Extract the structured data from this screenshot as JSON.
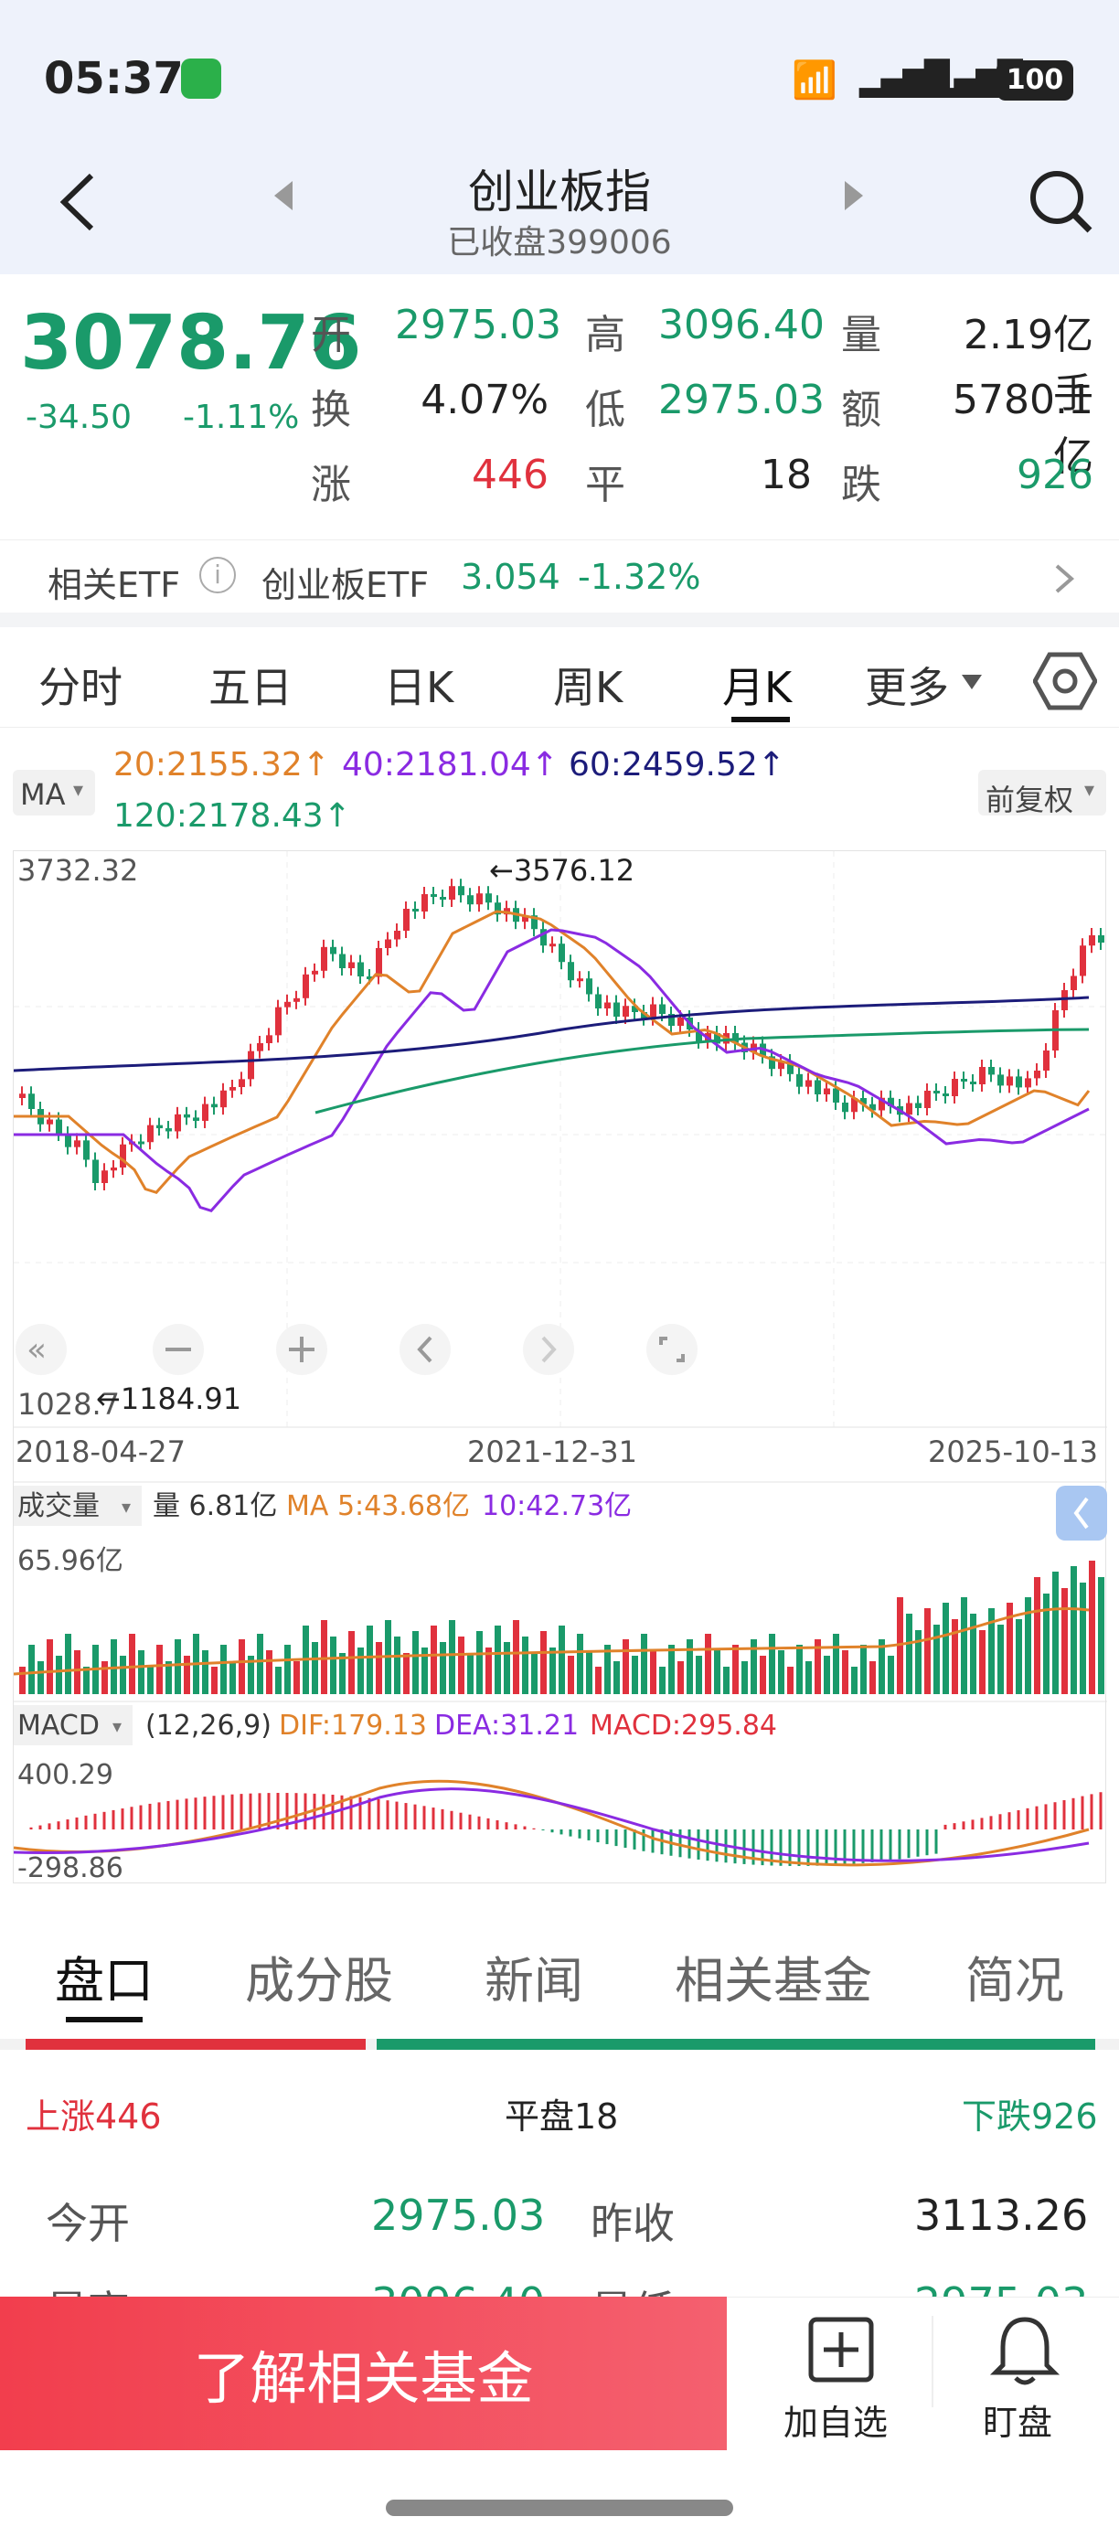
{
  "status": {
    "time": "05:37",
    "battery": "100"
  },
  "nav": {
    "title": "创业板指",
    "subtitle": "已收盘399006"
  },
  "quote": {
    "price": "3078.76",
    "change": "-34.50",
    "change_pct": "-1.11%",
    "rows": [
      [
        {
          "k": "开",
          "v": "2975.03",
          "c": "g"
        },
        {
          "k": "高",
          "v": "3096.40",
          "c": "g"
        },
        {
          "k": "量",
          "v": "2.19亿手",
          "c": ""
        }
      ],
      [
        {
          "k": "换",
          "v": "4.07%",
          "c": ""
        },
        {
          "k": "低",
          "v": "2975.03",
          "c": "g"
        },
        {
          "k": "额",
          "v": "5780.1亿",
          "c": ""
        }
      ],
      [
        {
          "k": "涨",
          "v": "446",
          "c": "r"
        },
        {
          "k": "平",
          "v": "18",
          "c": ""
        },
        {
          "k": "跌",
          "v": "926",
          "c": "g"
        }
      ]
    ]
  },
  "etf": {
    "label": "相关ETF",
    "name": "创业板ETF",
    "price": "3.054",
    "pct": "-1.32%"
  },
  "tabs": [
    "分时",
    "五日",
    "日K",
    "周K",
    "月K",
    "更多"
  ],
  "ma": {
    "label": "MA",
    "ma20": "20:2155.32↑",
    "ma40": "40:2181.04↑",
    "ma60": "60:2459.52↑",
    "ma120": "120:2178.43↑",
    "adjust": "前复权"
  },
  "kline": {
    "max_label": "3732.32",
    "min_label": "1028.7",
    "high_mark": "←3576.12",
    "low_mark": "←1184.91",
    "dates": [
      "2018-04-27",
      "2021-12-31",
      "2025-10-13"
    ]
  },
  "volume": {
    "label": "成交量",
    "vol": "量 6.81亿",
    "ma5": "MA 5:43.68亿",
    "ma10": "10:42.73亿",
    "max": "65.96亿"
  },
  "macd": {
    "label": "MACD",
    "params": "(12,26,9)",
    "dif": "DIF:179.13",
    "dea": "DEA:31.21",
    "macd": "MACD:295.84",
    "max": "400.29",
    "min": "-298.86"
  },
  "bottom_tabs": [
    "盘口",
    "成分股",
    "新闻",
    "相关基金",
    "简况"
  ],
  "breadth": {
    "up": "上涨446",
    "flat": "平盘18",
    "down": "下跌926"
  },
  "detail": {
    "open_k": "今开",
    "open_v": "2975.03",
    "prev_k": "昨收",
    "prev_v": "3113.26",
    "high_k": "最高",
    "high_v": "3096.40",
    "low_k": "最低",
    "low_v": "2975.03"
  },
  "footer": {
    "cta": "了解相关基金",
    "add": "加自选",
    "watch": "盯盘"
  },
  "colors": {
    "up": "#e0313d",
    "down": "#1a9a6a",
    "ma20": "#e0822a",
    "ma40": "#8a2be2",
    "ma60": "#1c1c7a",
    "ma120": "#1a9a6a"
  }
}
